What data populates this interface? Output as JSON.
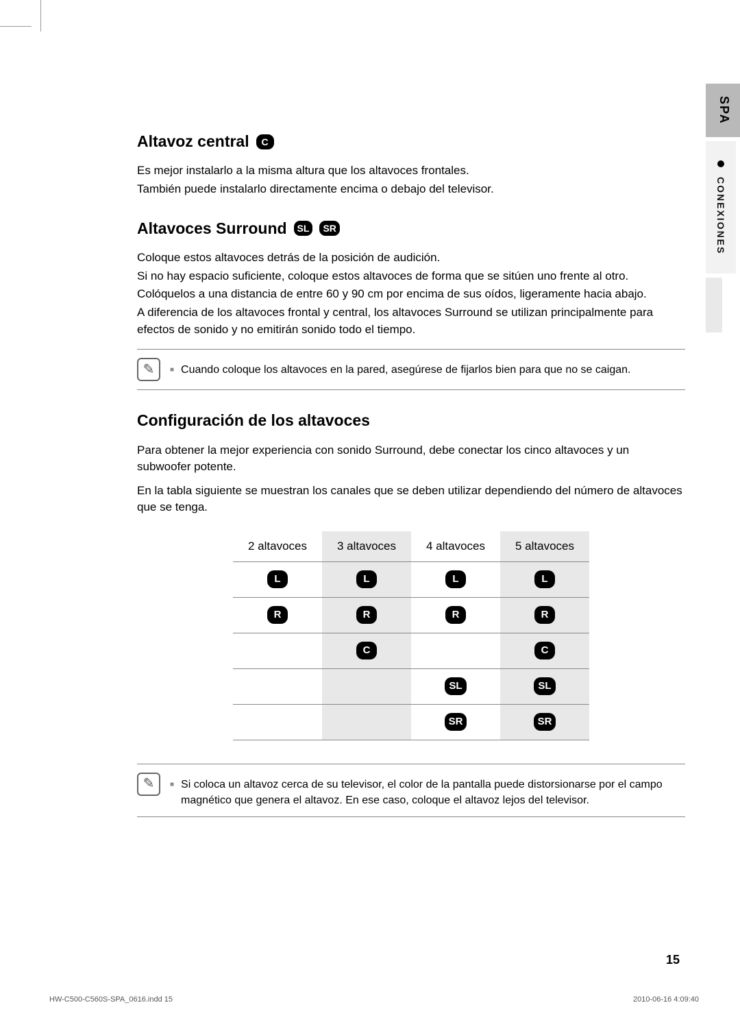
{
  "crop": true,
  "sideTab": {
    "language": "SPA",
    "section": "CONEXIONES"
  },
  "sections": {
    "central": {
      "title": "Altavoz central",
      "icon": "C",
      "lines": [
        "Es mejor instalarlo a la misma altura que los altavoces frontales.",
        "También puede instalarlo directamente encima o debajo del televisor."
      ]
    },
    "surround": {
      "title": "Altavoces Surround",
      "icons": [
        "SL",
        "SR"
      ],
      "lines": [
        "Coloque estos altavoces detrás de la posición de audición.",
        "Si no hay espacio suficiente, coloque estos altavoces de forma que se sitúen uno frente al otro.",
        "Colóquelos a una distancia de entre 60 y 90 cm por encima de sus oídos, ligeramente hacia abajo.",
        "A diferencia de los altavoces frontal y central, los altavoces Surround se utilizan principalmente para efectos de sonido y no emitirán sonido todo el tiempo."
      ]
    },
    "note1": "Cuando coloque los altavoces en la pared, asegúrese de fijarlos bien para que no se caigan.",
    "config": {
      "title": "Configuración de los altavoces",
      "lines": [
        "Para obtener la mejor experiencia con sonido Surround, debe conectar los cinco altavoces y un subwoofer potente.",
        "En la tabla siguiente se muestran los canales que se deben utilizar dependiendo del número de altavoces que se tenga."
      ]
    },
    "table": {
      "headers": [
        "2 altavoces",
        "3 altavoces",
        "4 altavoces",
        "5 altavoces"
      ],
      "rows": [
        [
          "L",
          "L",
          "L",
          "L"
        ],
        [
          "R",
          "R",
          "R",
          "R"
        ],
        [
          "",
          "C",
          "",
          "C"
        ],
        [
          "",
          "",
          "SL",
          "SL"
        ],
        [
          "",
          "",
          "SR",
          "SR"
        ]
      ],
      "shadeCols": [
        false,
        true,
        false,
        true
      ]
    },
    "note2": "Si coloca un altavoz cerca de su televisor, el color de la pantalla puede distorsionarse por el campo magnético que genera el altavoz. En ese caso, coloque el altavoz lejos del televisor."
  },
  "pageNumber": "15",
  "footer": {
    "left": "HW-C500-C560S-SPA_0616.indd   15",
    "right": "2010-06-16    4:09:40"
  }
}
